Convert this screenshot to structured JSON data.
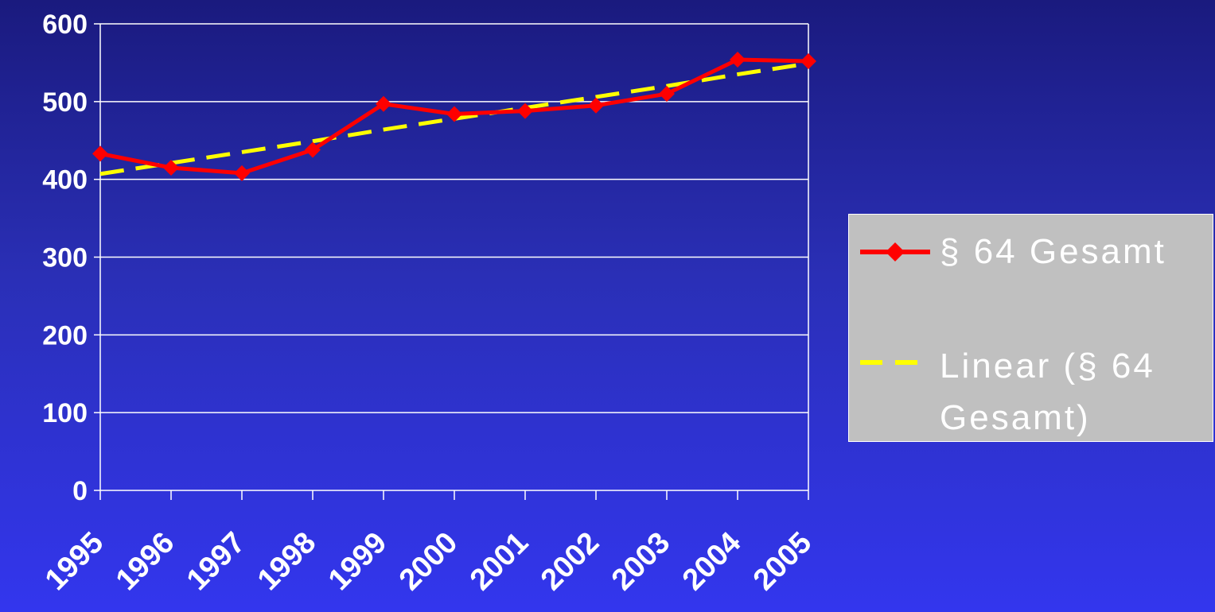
{
  "chart_data": {
    "type": "line",
    "x": [
      "1995",
      "1996",
      "1997",
      "1998",
      "1999",
      "2000",
      "2001",
      "2002",
      "2003",
      "2004",
      "2005"
    ],
    "series": [
      {
        "name": "§ 64 Gesamt",
        "values": [
          433,
          415,
          408,
          438,
          497,
          484,
          488,
          495,
          510,
          554,
          552
        ],
        "color": "#ff0000",
        "marker": "diamond"
      },
      {
        "name": "Linear (§ 64 Gesamt)",
        "values": [
          407,
          421,
          435,
          449,
          464,
          478,
          492,
          506,
          520,
          535,
          549
        ],
        "color": "#ffff00",
        "style": "dashed"
      }
    ],
    "title": "",
    "xlabel": "",
    "ylabel": "",
    "ylim": [
      0,
      600
    ],
    "yticks": [
      0,
      100,
      200,
      300,
      400,
      500,
      600
    ],
    "grid": true,
    "legend": "right"
  }
}
